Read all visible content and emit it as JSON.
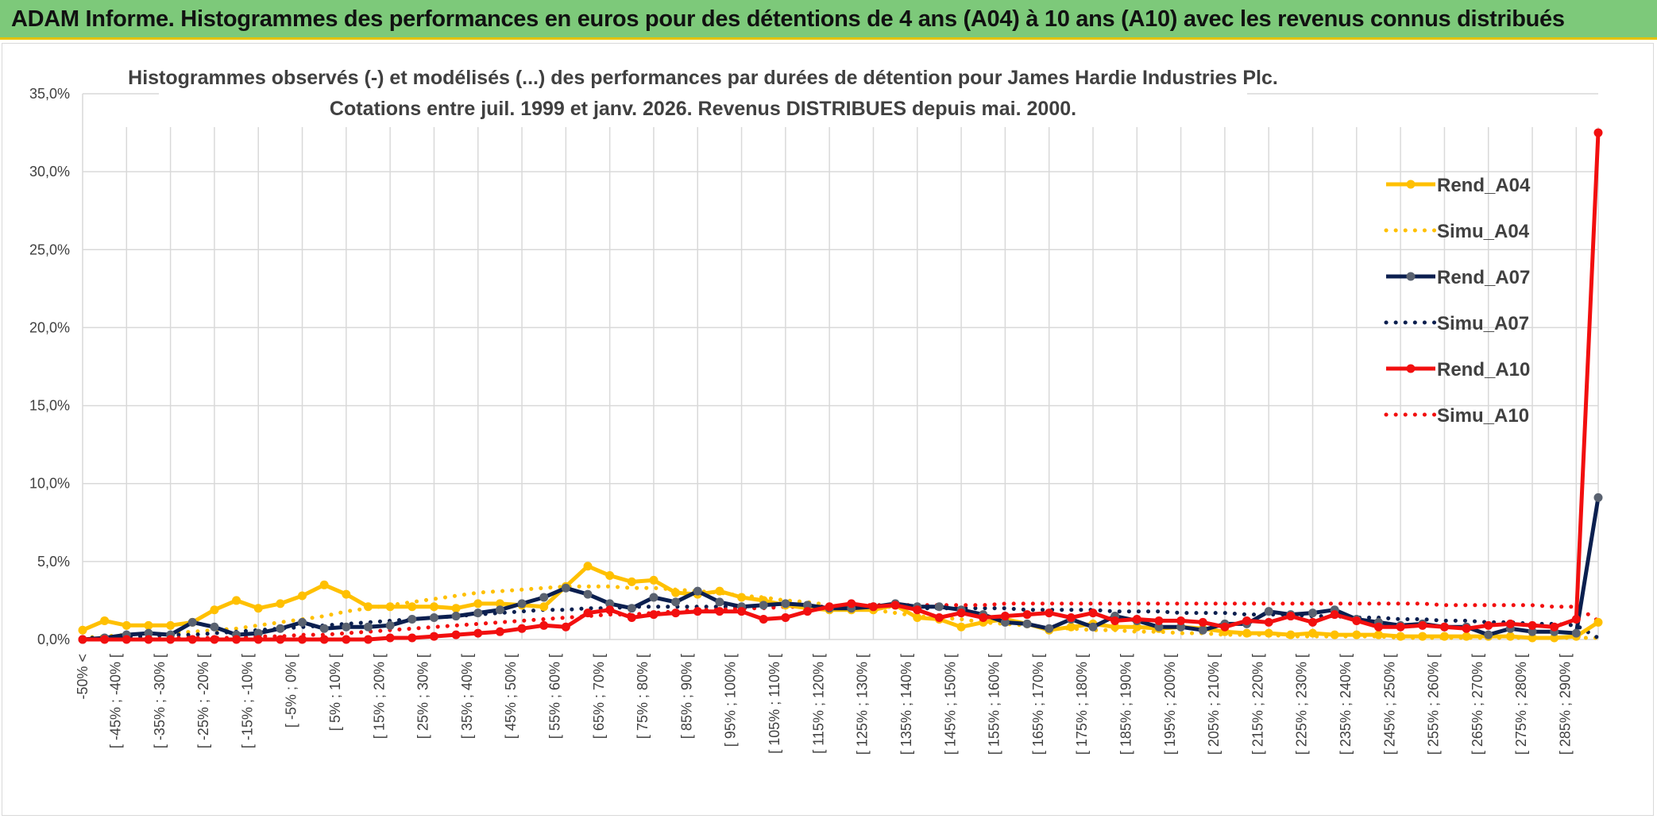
{
  "banner": {
    "title": "ADAM Informe. Histogrammes des performances en euros pour des détentions de 4 ans (A04) à 10 ans (A10) avec les revenus connus distribués"
  },
  "colors": {
    "banner_bg": "#7dc97a",
    "banner_border": "#e6c200",
    "A04": "#ffc000",
    "A07": "#0b1f4f",
    "A07_marker": "#5a6270",
    "A10": "#f20f0f",
    "grid": "#d9d9d9"
  },
  "chart_data": {
    "type": "line",
    "title_line1": "Histogrammes observés (-) et modélisés (...) des performances par durées de détention pour James Hardie Industries Plc.",
    "title_line2": "Cotations entre juil. 1999 et janv. 2026. Revenus DISTRIBUES depuis mai. 2000.",
    "ylim": [
      0,
      35
    ],
    "yticks": [
      "35,0%",
      "30,0%",
      "25,0%",
      "20,0%",
      "15,0%",
      "10,0%",
      "5,0%",
      "0,0%"
    ],
    "ytick_values": [
      35,
      30,
      25,
      20,
      15,
      10,
      5,
      0
    ],
    "xlabels": [
      "-50% <",
      "[ -45% ; -40% [",
      "[ -35% ; -30% [",
      "[ -25% ; -20% [",
      "[ -15% ; -10% [",
      "[ -5% ; 0% [",
      "[ 5% ; 10% [",
      "[ 15% ; 20% [",
      "[ 25% ; 30% [",
      "[ 35% ; 40% [",
      "[ 45% ; 50% [",
      "[ 55% ; 60% [",
      "[ 65% ; 70% [",
      "[ 75% ; 80% [",
      "[ 85% ; 90% [",
      "[ 95% ; 100% [",
      "[ 105% ; 110% [",
      "[ 115% ; 120% [",
      "[ 125% ; 130% [",
      "[ 135% ; 140% [",
      "[ 145% ; 150% [",
      "[ 155% ; 160% [",
      "[ 165% ; 170% [",
      "[ 175% ; 180% [",
      "[ 185% ; 190% [",
      "[ 195% ; 200% [",
      "[ 205% ; 210% [",
      "[ 215% ; 220% [",
      "[ 225% ; 230% [",
      "[ 235% ; 240% [",
      "[ 245% ; 250% [",
      "[ 255% ; 260% [",
      "[ 265% ; 270% [",
      "[ 275% ; 280% [",
      "[ 285% ; 290% ["
    ],
    "series": [
      {
        "name": "Rend_A04",
        "style": "solid",
        "color": "#ffc000",
        "marker": "#ffc000",
        "values": [
          0.6,
          1.2,
          0.9,
          0.9,
          0.9,
          1.1,
          1.9,
          2.5,
          2.0,
          2.3,
          2.8,
          3.5,
          2.9,
          2.1,
          2.1,
          2.1,
          2.1,
          2.0,
          2.3,
          2.3,
          2.2,
          2.1,
          3.4,
          4.7,
          4.1,
          3.7,
          3.8,
          3.0,
          2.9,
          3.1,
          2.7,
          2.5,
          2.2,
          2.0,
          1.9,
          1.9,
          1.9,
          2.2,
          1.4,
          1.3,
          0.8,
          1.1,
          1.3,
          1.0,
          0.6,
          0.8,
          1.0,
          0.8,
          0.8,
          0.7,
          0.8,
          0.7,
          0.5,
          0.4,
          0.4,
          0.3,
          0.4,
          0.3,
          0.3,
          0.3,
          0.2,
          0.2,
          0.2,
          0.2,
          0.2,
          0.2,
          0.1,
          0.1,
          0.2,
          1.1
        ]
      },
      {
        "name": "Simu_A04",
        "style": "dotted",
        "color": "#ffc000",
        "values": [
          0.1,
          0.2,
          0.3,
          0.3,
          0.4,
          0.5,
          0.6,
          0.7,
          0.9,
          1.1,
          1.3,
          1.5,
          1.8,
          2.0,
          2.2,
          2.4,
          2.6,
          2.8,
          3.0,
          3.1,
          3.2,
          3.3,
          3.4,
          3.4,
          3.4,
          3.3,
          3.3,
          3.2,
          3.1,
          3.0,
          2.8,
          2.7,
          2.5,
          2.4,
          2.2,
          2.0,
          1.9,
          1.7,
          1.5,
          1.4,
          1.3,
          1.1,
          1.0,
          0.9,
          0.8,
          0.7,
          0.6,
          0.6,
          0.5,
          0.5,
          0.4,
          0.4,
          0.3,
          0.3,
          0.3,
          0.2,
          0.2,
          0.2,
          0.2,
          0.2,
          0.1,
          0.1,
          0.1,
          0.1,
          0.1,
          0.1,
          0.1,
          0.1,
          0.1,
          0.1
        ]
      },
      {
        "name": "Rend_A07",
        "style": "solid",
        "color": "#0b1f4f",
        "marker": "#5a6270",
        "values": [
          0.0,
          0.1,
          0.3,
          0.4,
          0.3,
          1.1,
          0.8,
          0.3,
          0.4,
          0.7,
          1.1,
          0.7,
          0.8,
          0.8,
          0.9,
          1.3,
          1.4,
          1.5,
          1.7,
          1.9,
          2.3,
          2.7,
          3.3,
          2.9,
          2.3,
          2.0,
          2.7,
          2.4,
          3.1,
          2.4,
          2.1,
          2.2,
          2.3,
          2.2,
          2.0,
          2.0,
          2.1,
          2.3,
          2.1,
          2.1,
          1.9,
          1.6,
          1.1,
          1.0,
          0.7,
          1.3,
          0.8,
          1.5,
          1.2,
          0.8,
          0.8,
          0.6,
          1.0,
          1.0,
          1.8,
          1.6,
          1.7,
          1.9,
          1.3,
          1.1,
          0.9,
          1.0,
          0.8,
          0.8,
          0.3,
          0.7,
          0.5,
          0.5,
          0.4,
          9.1
        ]
      },
      {
        "name": "Simu_A07",
        "style": "dotted",
        "color": "#0b1f4f",
        "values": [
          0.1,
          0.1,
          0.2,
          0.2,
          0.3,
          0.3,
          0.4,
          0.5,
          0.6,
          0.7,
          0.8,
          0.9,
          1.0,
          1.1,
          1.2,
          1.3,
          1.4,
          1.5,
          1.6,
          1.7,
          1.8,
          1.9,
          1.9,
          2.0,
          2.0,
          2.1,
          2.1,
          2.1,
          2.1,
          2.1,
          2.1,
          2.1,
          2.1,
          2.1,
          2.1,
          2.1,
          2.1,
          2.1,
          2.0,
          2.0,
          2.0,
          2.0,
          2.0,
          1.9,
          1.9,
          1.9,
          1.9,
          1.8,
          1.8,
          1.8,
          1.7,
          1.7,
          1.7,
          1.6,
          1.6,
          1.6,
          1.5,
          1.5,
          1.4,
          1.4,
          1.3,
          1.3,
          1.2,
          1.2,
          1.1,
          1.1,
          1.0,
          1.0,
          0.9,
          0.1
        ]
      },
      {
        "name": "Rend_A10",
        "style": "solid",
        "color": "#f20f0f",
        "marker": "#f20f0f",
        "values": [
          0.0,
          0.0,
          0.0,
          0.0,
          0.0,
          0.0,
          0.0,
          0.0,
          0.0,
          0.0,
          0.0,
          0.0,
          0.0,
          0.0,
          0.1,
          0.1,
          0.2,
          0.3,
          0.4,
          0.5,
          0.7,
          0.9,
          0.8,
          1.7,
          1.9,
          1.4,
          1.6,
          1.7,
          1.8,
          1.8,
          1.8,
          1.3,
          1.4,
          1.8,
          2.1,
          2.3,
          2.1,
          2.2,
          1.9,
          1.4,
          1.7,
          1.4,
          1.5,
          1.6,
          1.7,
          1.4,
          1.7,
          1.2,
          1.3,
          1.2,
          1.2,
          1.1,
          0.8,
          1.2,
          1.1,
          1.5,
          1.1,
          1.6,
          1.2,
          0.8,
          0.8,
          0.9,
          0.8,
          0.7,
          0.9,
          1.0,
          0.9,
          0.8,
          1.3,
          32.5
        ]
      },
      {
        "name": "Simu_A10",
        "style": "dotted",
        "color": "#f20f0f",
        "values": [
          0.0,
          0.0,
          0.0,
          0.0,
          0.1,
          0.1,
          0.1,
          0.1,
          0.2,
          0.2,
          0.3,
          0.3,
          0.4,
          0.5,
          0.6,
          0.7,
          0.8,
          0.9,
          1.0,
          1.1,
          1.2,
          1.3,
          1.4,
          1.5,
          1.6,
          1.6,
          1.7,
          1.8,
          1.9,
          1.9,
          2.0,
          2.0,
          2.1,
          2.1,
          2.1,
          2.2,
          2.2,
          2.2,
          2.2,
          2.2,
          2.2,
          2.2,
          2.3,
          2.3,
          2.3,
          2.3,
          2.3,
          2.3,
          2.3,
          2.3,
          2.3,
          2.3,
          2.3,
          2.3,
          2.3,
          2.3,
          2.3,
          2.3,
          2.3,
          2.3,
          2.3,
          2.3,
          2.2,
          2.2,
          2.2,
          2.2,
          2.2,
          2.1,
          2.1,
          1.2
        ]
      }
    ],
    "legend": [
      "Rend_A04",
      "Simu_A04",
      "Rend_A07",
      "Simu_A07",
      "Rend_A10",
      "Simu_A10"
    ],
    "legend_position": "right"
  }
}
